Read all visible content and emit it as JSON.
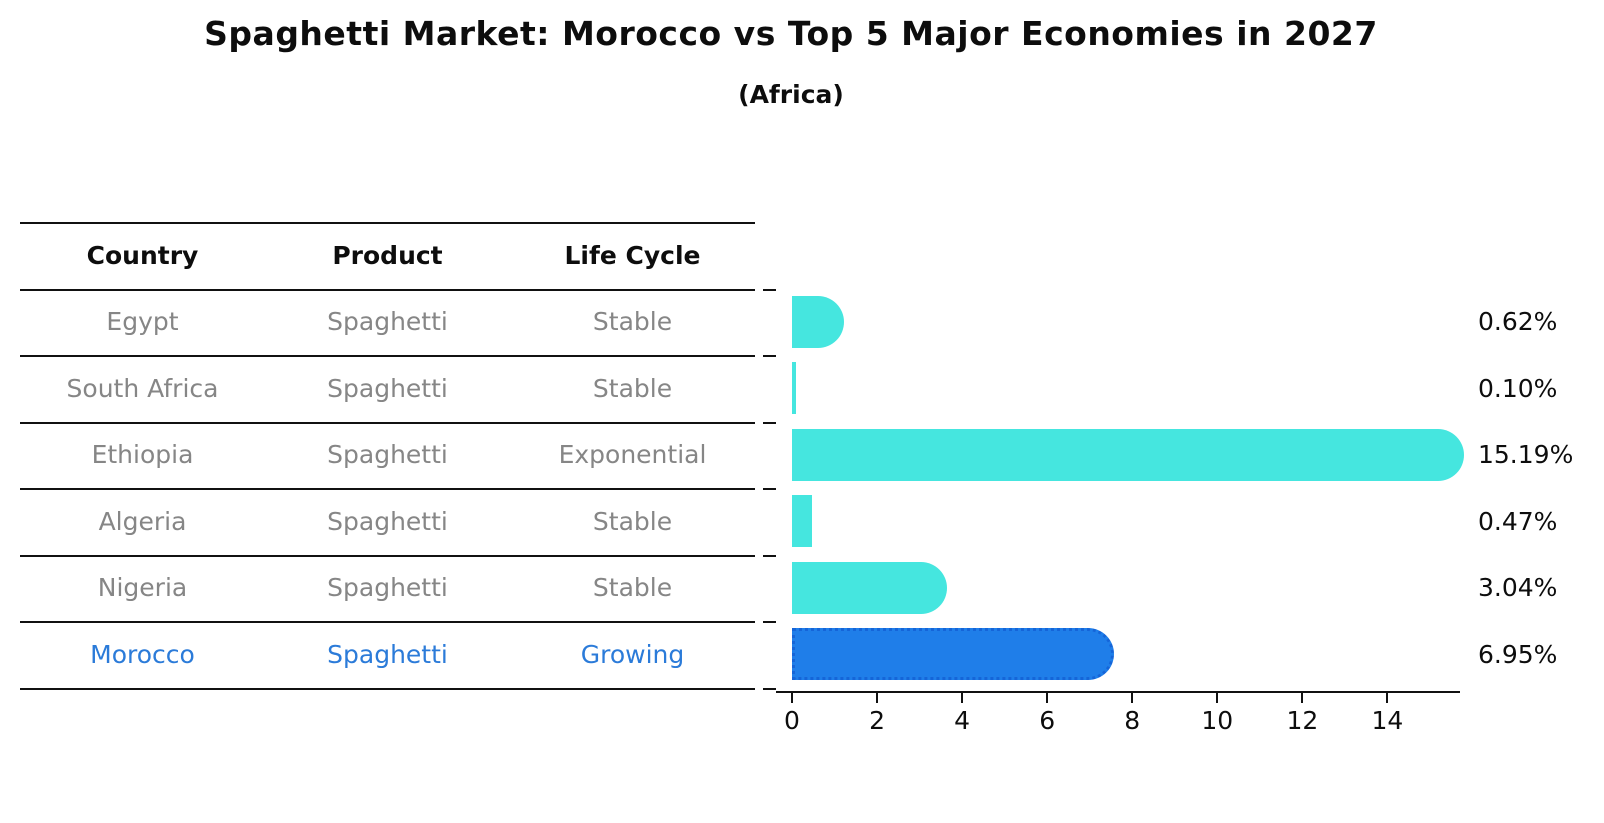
{
  "title": "Spaghetti Market: Morocco vs Top 5 Major Economies in 2027",
  "subtitle": "(Africa)",
  "table": {
    "headers": [
      "Country",
      "Product",
      "Life Cycle"
    ],
    "rows": [
      {
        "country": "Egypt",
        "product": "Spaghetti",
        "life_cycle": "Stable",
        "highlight": false
      },
      {
        "country": "South Africa",
        "product": "Spaghetti",
        "life_cycle": "Stable",
        "highlight": false
      },
      {
        "country": "Ethiopia",
        "product": "Spaghetti",
        "life_cycle": "Exponential",
        "highlight": false
      },
      {
        "country": "Algeria",
        "product": "Spaghetti",
        "life_cycle": "Stable",
        "highlight": false
      },
      {
        "country": "Nigeria",
        "product": "Spaghetti",
        "life_cycle": "Stable",
        "highlight": false
      },
      {
        "country": "Morocco",
        "product": "Spaghetti",
        "life_cycle": "Growing",
        "highlight": true
      }
    ]
  },
  "chart_data": {
    "type": "bar",
    "orientation": "horizontal",
    "title": "Spaghetti Market: Morocco vs Top 5 Major Economies in 2027",
    "subtitle": "(Africa)",
    "categories": [
      "Egypt",
      "South Africa",
      "Ethiopia",
      "Algeria",
      "Nigeria",
      "Morocco"
    ],
    "values": [
      0.62,
      0.1,
      15.19,
      0.47,
      3.04,
      6.95
    ],
    "value_labels": [
      "0.62%",
      "0.10%",
      "15.19%",
      "0.47%",
      "3.04%",
      "6.95%"
    ],
    "xticks": [
      0,
      2,
      4,
      6,
      8,
      10,
      12,
      14
    ],
    "xlim": [
      0,
      15.7
    ],
    "grid": false,
    "legend": "none",
    "unit": "percent",
    "colors": {
      "bar": "#45e6df",
      "highlight_bar": "#1f7ee9",
      "highlight_border": "#1565d8",
      "highlight_text": "#2b7bd9",
      "table_text": "#868686",
      "header_text": "#0d0d0d"
    },
    "highlight_index": 5
  }
}
